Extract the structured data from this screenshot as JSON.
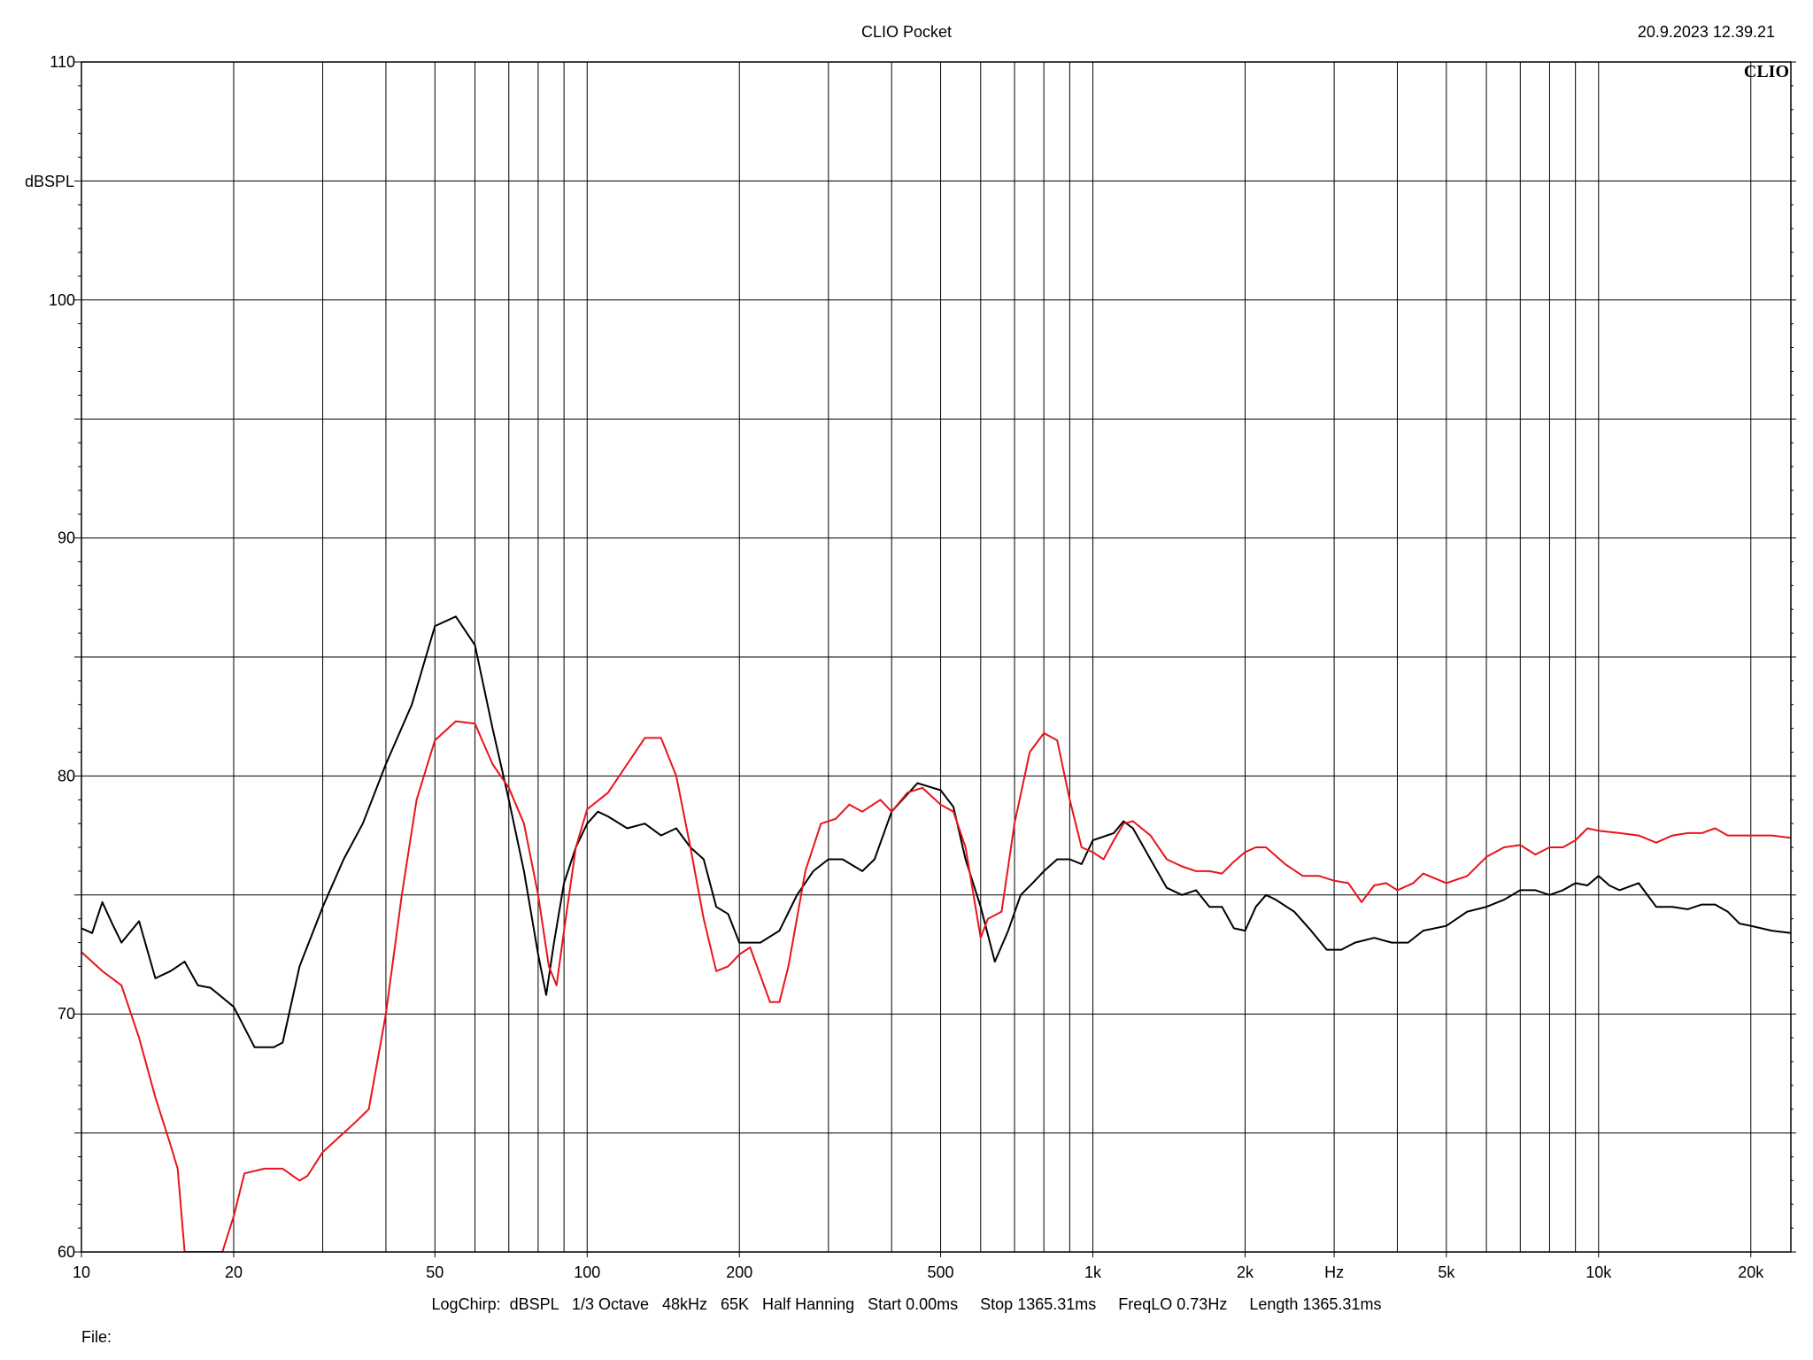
{
  "header": {
    "title": "CLIO Pocket",
    "timestamp": "20.9.2023 12.39.21",
    "logo": "CLIO"
  },
  "footer": {
    "info": "LogChirp:  dBSPL   1/3 Octave   48kHz   65K   Half Hanning   Start 0.00ms     Stop 1365.31ms     FreqLO 0.73Hz     Length 1365.31ms",
    "file_label": "File:"
  },
  "chart_data": {
    "type": "line",
    "title": "CLIO Pocket",
    "xlabel": "Hz",
    "ylabel": "dBSPL",
    "xscale": "log",
    "xlim": [
      10,
      24000
    ],
    "ylim": [
      60,
      110
    ],
    "grid": true,
    "x_ticks": [
      {
        "value": 10,
        "label": "10"
      },
      {
        "value": 20,
        "label": "20"
      },
      {
        "value": 50,
        "label": "50"
      },
      {
        "value": 100,
        "label": "100"
      },
      {
        "value": 200,
        "label": "200"
      },
      {
        "value": 500,
        "label": "500"
      },
      {
        "value": 1000,
        "label": "1k"
      },
      {
        "value": 2000,
        "label": "2k"
      },
      {
        "value": 3000,
        "label": "Hz"
      },
      {
        "value": 5000,
        "label": "5k"
      },
      {
        "value": 10000,
        "label": "10k"
      },
      {
        "value": 20000,
        "label": "20k"
      }
    ],
    "y_ticks": [
      {
        "value": 110,
        "label": "110"
      },
      {
        "value": 100,
        "label": "100"
      },
      {
        "value": 90,
        "label": "90"
      },
      {
        "value": 80,
        "label": "80"
      },
      {
        "value": 70,
        "label": "70"
      },
      {
        "value": 60,
        "label": "60"
      }
    ],
    "series": [
      {
        "color": "#000000",
        "points": [
          [
            10,
            73.6
          ],
          [
            10.5,
            73.4
          ],
          [
            11,
            74.7
          ],
          [
            11.5,
            73.8
          ],
          [
            12,
            73
          ],
          [
            13,
            73.9
          ],
          [
            14,
            71.5
          ],
          [
            15,
            71.8
          ],
          [
            16,
            72.2
          ],
          [
            17,
            71.2
          ],
          [
            18,
            71.1
          ],
          [
            20,
            70.3
          ],
          [
            22,
            68.6
          ],
          [
            24,
            68.6
          ],
          [
            25,
            68.8
          ],
          [
            27,
            72
          ],
          [
            30,
            74.5
          ],
          [
            33,
            76.5
          ],
          [
            36,
            78
          ],
          [
            40,
            80.5
          ],
          [
            45,
            83
          ],
          [
            50,
            86.3
          ],
          [
            55,
            86.7
          ],
          [
            60,
            85.5
          ],
          [
            65,
            82
          ],
          [
            70,
            79
          ],
          [
            75,
            76
          ],
          [
            80,
            72.5
          ],
          [
            83,
            70.8
          ],
          [
            86,
            73
          ],
          [
            90,
            75.5
          ],
          [
            95,
            77
          ],
          [
            100,
            78
          ],
          [
            105,
            78.5
          ],
          [
            110,
            78.3
          ],
          [
            120,
            77.8
          ],
          [
            130,
            78
          ],
          [
            140,
            77.5
          ],
          [
            150,
            77.8
          ],
          [
            160,
            77
          ],
          [
            170,
            76.5
          ],
          [
            180,
            74.5
          ],
          [
            190,
            74.2
          ],
          [
            200,
            73
          ],
          [
            220,
            73
          ],
          [
            240,
            73.5
          ],
          [
            260,
            75
          ],
          [
            280,
            76
          ],
          [
            300,
            76.5
          ],
          [
            320,
            76.5
          ],
          [
            350,
            76
          ],
          [
            370,
            76.5
          ],
          [
            400,
            78.5
          ],
          [
            450,
            79.7
          ],
          [
            500,
            79.4
          ],
          [
            530,
            78.7
          ],
          [
            560,
            76.5
          ],
          [
            600,
            74.5
          ],
          [
            640,
            72.2
          ],
          [
            680,
            73.5
          ],
          [
            720,
            75
          ],
          [
            760,
            75.5
          ],
          [
            800,
            76
          ],
          [
            850,
            76.5
          ],
          [
            900,
            76.5
          ],
          [
            950,
            76.3
          ],
          [
            1000,
            77.3
          ],
          [
            1100,
            77.6
          ],
          [
            1150,
            78.1
          ],
          [
            1200,
            77.8
          ],
          [
            1300,
            76.5
          ],
          [
            1400,
            75.3
          ],
          [
            1500,
            75
          ],
          [
            1600,
            75.2
          ],
          [
            1700,
            74.5
          ],
          [
            1800,
            74.5
          ],
          [
            1900,
            73.6
          ],
          [
            2000,
            73.5
          ],
          [
            2100,
            74.5
          ],
          [
            2200,
            75
          ],
          [
            2300,
            74.8
          ],
          [
            2500,
            74.3
          ],
          [
            2700,
            73.5
          ],
          [
            2900,
            72.7
          ],
          [
            3100,
            72.7
          ],
          [
            3300,
            73
          ],
          [
            3600,
            73.2
          ],
          [
            3900,
            73
          ],
          [
            4200,
            73
          ],
          [
            4500,
            73.5
          ],
          [
            5000,
            73.7
          ],
          [
            5500,
            74.3
          ],
          [
            6000,
            74.5
          ],
          [
            6500,
            74.8
          ],
          [
            7000,
            75.2
          ],
          [
            7500,
            75.2
          ],
          [
            8000,
            75
          ],
          [
            8500,
            75.2
          ],
          [
            9000,
            75.5
          ],
          [
            9500,
            75.4
          ],
          [
            10000,
            75.8
          ],
          [
            10500,
            75.4
          ],
          [
            11000,
            75.2
          ],
          [
            12000,
            75.5
          ],
          [
            13000,
            74.5
          ],
          [
            14000,
            74.5
          ],
          [
            15000,
            74.4
          ],
          [
            16000,
            74.6
          ],
          [
            17000,
            74.6
          ],
          [
            18000,
            74.3
          ],
          [
            19000,
            73.8
          ],
          [
            20000,
            73.7
          ],
          [
            22000,
            73.5
          ],
          [
            24000,
            73.4
          ]
        ]
      },
      {
        "color": "#e8141c",
        "points": [
          [
            10,
            72.6
          ],
          [
            11,
            71.8
          ],
          [
            12,
            71.2
          ],
          [
            13,
            69
          ],
          [
            14,
            66.5
          ],
          [
            15,
            64.5
          ],
          [
            15.5,
            63.5
          ],
          [
            16,
            60
          ],
          [
            19,
            60
          ],
          [
            20,
            61.5
          ],
          [
            21,
            63.3
          ],
          [
            23,
            63.5
          ],
          [
            25,
            63.5
          ],
          [
            27,
            63
          ],
          [
            28,
            63.2
          ],
          [
            30,
            64.2
          ],
          [
            33,
            65
          ],
          [
            35,
            65.5
          ],
          [
            37,
            66
          ],
          [
            40,
            70
          ],
          [
            43,
            75
          ],
          [
            46,
            79
          ],
          [
            50,
            81.5
          ],
          [
            55,
            82.3
          ],
          [
            60,
            82.2
          ],
          [
            65,
            80.5
          ],
          [
            70,
            79.5
          ],
          [
            75,
            78
          ],
          [
            80,
            75
          ],
          [
            84,
            72
          ],
          [
            87,
            71.2
          ],
          [
            90,
            73.5
          ],
          [
            95,
            77
          ],
          [
            100,
            78.6
          ],
          [
            110,
            79.3
          ],
          [
            120,
            80.5
          ],
          [
            130,
            81.6
          ],
          [
            140,
            81.6
          ],
          [
            150,
            80
          ],
          [
            160,
            77
          ],
          [
            170,
            74
          ],
          [
            180,
            71.8
          ],
          [
            190,
            72
          ],
          [
            200,
            72.5
          ],
          [
            210,
            72.8
          ],
          [
            230,
            70.5
          ],
          [
            240,
            70.5
          ],
          [
            250,
            72
          ],
          [
            270,
            76
          ],
          [
            290,
            78
          ],
          [
            310,
            78.2
          ],
          [
            330,
            78.8
          ],
          [
            350,
            78.5
          ],
          [
            380,
            79
          ],
          [
            400,
            78.5
          ],
          [
            430,
            79.3
          ],
          [
            460,
            79.5
          ],
          [
            500,
            78.8
          ],
          [
            530,
            78.5
          ],
          [
            560,
            77
          ],
          [
            600,
            73.2
          ],
          [
            620,
            74
          ],
          [
            660,
            74.3
          ],
          [
            700,
            78
          ],
          [
            750,
            81
          ],
          [
            800,
            81.8
          ],
          [
            850,
            81.5
          ],
          [
            900,
            79
          ],
          [
            950,
            77
          ],
          [
            1000,
            76.8
          ],
          [
            1050,
            76.5
          ],
          [
            1100,
            77.3
          ],
          [
            1150,
            78
          ],
          [
            1200,
            78.1
          ],
          [
            1300,
            77.5
          ],
          [
            1400,
            76.5
          ],
          [
            1500,
            76.2
          ],
          [
            1600,
            76
          ],
          [
            1700,
            76
          ],
          [
            1800,
            75.9
          ],
          [
            1900,
            76.4
          ],
          [
            2000,
            76.8
          ],
          [
            2100,
            77
          ],
          [
            2200,
            77
          ],
          [
            2400,
            76.3
          ],
          [
            2600,
            75.8
          ],
          [
            2800,
            75.8
          ],
          [
            3000,
            75.6
          ],
          [
            3200,
            75.5
          ],
          [
            3400,
            74.7
          ],
          [
            3600,
            75.4
          ],
          [
            3800,
            75.5
          ],
          [
            4000,
            75.2
          ],
          [
            4300,
            75.5
          ],
          [
            4500,
            75.9
          ],
          [
            5000,
            75.5
          ],
          [
            5500,
            75.8
          ],
          [
            6000,
            76.6
          ],
          [
            6500,
            77
          ],
          [
            7000,
            77.1
          ],
          [
            7500,
            76.7
          ],
          [
            8000,
            77
          ],
          [
            8500,
            77
          ],
          [
            9000,
            77.3
          ],
          [
            9500,
            77.8
          ],
          [
            10000,
            77.7
          ],
          [
            11000,
            77.6
          ],
          [
            12000,
            77.5
          ],
          [
            13000,
            77.2
          ],
          [
            14000,
            77.5
          ],
          [
            15000,
            77.6
          ],
          [
            16000,
            77.6
          ],
          [
            17000,
            77.8
          ],
          [
            18000,
            77.5
          ],
          [
            20000,
            77.5
          ],
          [
            22000,
            77.5
          ],
          [
            24000,
            77.4
          ]
        ]
      }
    ]
  }
}
